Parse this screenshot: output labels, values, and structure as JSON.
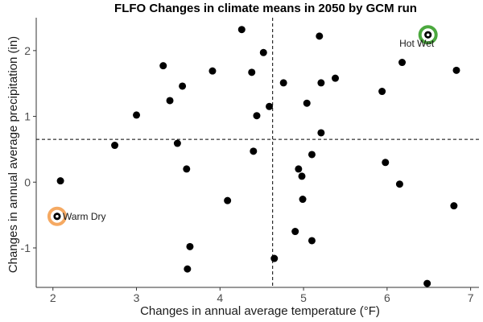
{
  "chart_data": {
    "type": "scatter",
    "title": "FLFO Changes in climate means in 2050 by GCM run",
    "xlabel": "Changes in annual average temperature (°F)",
    "ylabel": "Changes in annual average precipitation (in)",
    "xlim": [
      1.8,
      7.1
    ],
    "ylim": [
      -1.6,
      2.5
    ],
    "xticks": [
      2,
      3,
      4,
      5,
      6,
      7
    ],
    "yticks": [
      -1,
      0,
      1,
      2
    ],
    "xtick_labels": [
      "2",
      "3",
      "4",
      "5",
      "6",
      "7"
    ],
    "ytick_labels": [
      "-1",
      "0",
      "1",
      "2"
    ],
    "grid": false,
    "reference_lines": {
      "x": 4.63,
      "y": 0.65
    },
    "points": [
      {
        "x": 2.05,
        "y": -0.52
      },
      {
        "x": 2.09,
        "y": 0.02
      },
      {
        "x": 2.74,
        "y": 0.56
      },
      {
        "x": 3.0,
        "y": 1.02
      },
      {
        "x": 3.32,
        "y": 1.77
      },
      {
        "x": 3.4,
        "y": 1.24
      },
      {
        "x": 3.49,
        "y": 0.59
      },
      {
        "x": 3.55,
        "y": 1.46
      },
      {
        "x": 3.6,
        "y": 0.2
      },
      {
        "x": 3.64,
        "y": -0.98
      },
      {
        "x": 3.61,
        "y": -1.32
      },
      {
        "x": 3.91,
        "y": 1.69
      },
      {
        "x": 4.09,
        "y": -0.28
      },
      {
        "x": 4.26,
        "y": 2.32
      },
      {
        "x": 4.38,
        "y": 1.67
      },
      {
        "x": 4.4,
        "y": 0.47
      },
      {
        "x": 4.44,
        "y": 1.01
      },
      {
        "x": 4.52,
        "y": 1.97
      },
      {
        "x": 4.59,
        "y": 1.15
      },
      {
        "x": 4.65,
        "y": -1.16
      },
      {
        "x": 4.76,
        "y": 1.51
      },
      {
        "x": 4.9,
        "y": -0.75
      },
      {
        "x": 4.94,
        "y": 0.2
      },
      {
        "x": 4.98,
        "y": 0.09
      },
      {
        "x": 4.99,
        "y": -0.26
      },
      {
        "x": 5.04,
        "y": 1.2
      },
      {
        "x": 5.1,
        "y": 0.42
      },
      {
        "x": 5.1,
        "y": -0.89
      },
      {
        "x": 5.19,
        "y": 2.22
      },
      {
        "x": 5.21,
        "y": 1.51
      },
      {
        "x": 5.21,
        "y": 0.75
      },
      {
        "x": 5.38,
        "y": 1.58
      },
      {
        "x": 5.94,
        "y": 1.38
      },
      {
        "x": 5.98,
        "y": 0.3
      },
      {
        "x": 6.15,
        "y": -0.03
      },
      {
        "x": 6.18,
        "y": 1.82
      },
      {
        "x": 6.49,
        "y": 2.24
      },
      {
        "x": 6.48,
        "y": -1.54
      },
      {
        "x": 6.8,
        "y": -0.36
      },
      {
        "x": 6.83,
        "y": 1.7
      }
    ],
    "highlights": [
      {
        "label": "Warm Dry",
        "x": 2.05,
        "y": -0.52,
        "color": "#F5A962"
      },
      {
        "label": "Hot Wet",
        "x": 6.49,
        "y": 2.24,
        "color": "#4BA83E"
      }
    ]
  }
}
